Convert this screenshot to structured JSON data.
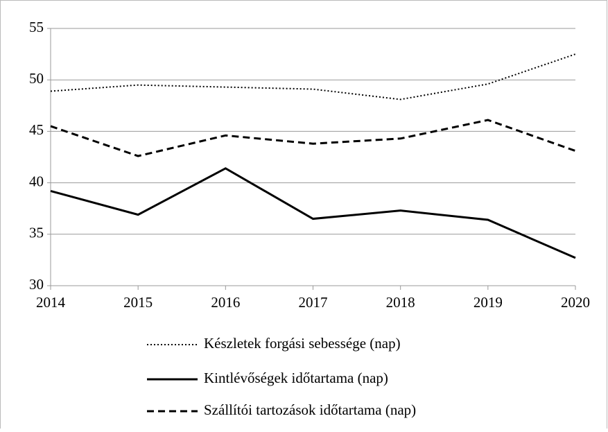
{
  "chart_data": {
    "type": "line",
    "categories": [
      "2014",
      "2015",
      "2016",
      "2017",
      "2018",
      "2019",
      "2020"
    ],
    "series": [
      {
        "name": "Készletek forgási sebessége (nap)",
        "color": "#000000",
        "dash": "dotted",
        "values": [
          48.9,
          49.5,
          49.3,
          49.1,
          48.1,
          49.6,
          52.5
        ]
      },
      {
        "name": "Kintlévőségek időtartama (nap)",
        "color": "#000000",
        "dash": "solid",
        "values": [
          39.2,
          36.9,
          41.4,
          36.5,
          37.3,
          36.4,
          32.7
        ]
      },
      {
        "name": "Szállítói tartozások időtartama (nap)",
        "color": "#000000",
        "dash": "dashed",
        "values": [
          45.5,
          42.6,
          44.6,
          43.8,
          44.3,
          46.1,
          43.1
        ]
      }
    ],
    "ylim": [
      30,
      55
    ],
    "yticks": [
      30,
      35,
      40,
      45,
      50,
      55
    ],
    "grid": true,
    "legend": "bottom"
  }
}
